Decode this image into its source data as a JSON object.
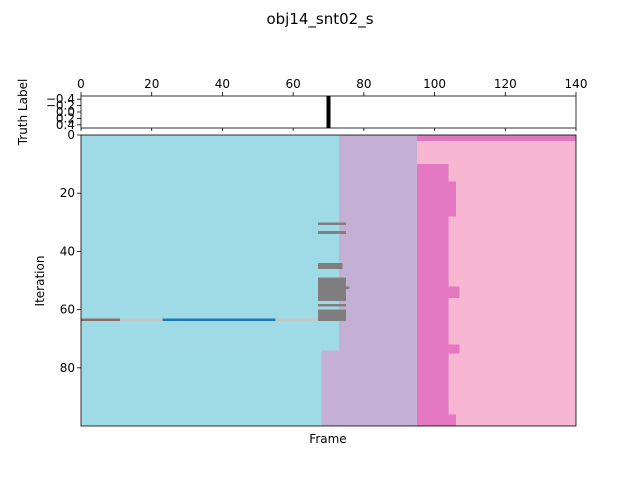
{
  "chart_data": [
    {
      "type": "heatmap",
      "title": "obj14_snt02_s",
      "xaxis_position": "top",
      "xlim": [
        0,
        140
      ],
      "xticks": [
        0,
        20,
        40,
        60,
        80,
        100,
        120,
        140
      ],
      "ylabel": "Truth Label",
      "ylim": [
        0.5,
        -0.5
      ],
      "yticks": [
        -0.4,
        -0.2,
        0.0,
        0.2,
        0.4
      ],
      "ytick_labels": [
        "−0.4",
        "−0.2",
        "0.0",
        "0.2",
        "0.4"
      ],
      "markers": [
        {
          "x": 70,
          "color": "#000000"
        }
      ]
    },
    {
      "type": "heatmap",
      "xlabel": "Frame",
      "ylabel": "Iteration",
      "xlim": [
        0,
        140
      ],
      "ylim": [
        100,
        0
      ],
      "yticks": [
        0,
        20,
        40,
        60,
        80
      ],
      "x_ticks_visible": false,
      "grid": false,
      "colors": {
        "cyan": "#9fdbe6",
        "lavender": "#c5b0d5",
        "pink": "#f7b6d2",
        "magenta": "#e377c2",
        "gray": "#7f7f7f",
        "brown": "#8c6d62",
        "light_gray": "#c7c7c7",
        "blue": "#1f77b4"
      },
      "regions": [
        {
          "color": "cyan",
          "x0": 0,
          "x1": 73,
          "y0": 0,
          "y1": 100
        },
        {
          "color": "lavender",
          "x0": 73,
          "x1": 95,
          "y0": 0,
          "y1": 100
        },
        {
          "color": "pink",
          "x0": 95,
          "x1": 140,
          "y0": 0,
          "y1": 100
        },
        {
          "color": "lavender",
          "x0": 68,
          "x1": 73,
          "y0": 74,
          "y1": 100
        },
        {
          "color": "magenta",
          "x0": 95,
          "x1": 140,
          "y0": 0,
          "y1": 2
        },
        {
          "color": "magenta",
          "x0": 95,
          "x1": 104,
          "y0": 10,
          "y1": 100
        },
        {
          "color": "magenta",
          "x0": 104,
          "x1": 106,
          "y0": 16,
          "y1": 28
        },
        {
          "color": "magenta",
          "x0": 104,
          "x1": 107,
          "y0": 52,
          "y1": 56
        },
        {
          "color": "magenta",
          "x0": 104,
          "x1": 107,
          "y0": 72,
          "y1": 75
        },
        {
          "color": "magenta",
          "x0": 104,
          "x1": 106,
          "y0": 96,
          "y1": 100
        },
        {
          "color": "gray",
          "x0": 67,
          "x1": 75,
          "y0": 30,
          "y1": 31
        },
        {
          "color": "gray",
          "x0": 67,
          "x1": 75,
          "y0": 33,
          "y1": 34
        },
        {
          "color": "gray",
          "x0": 67,
          "x1": 74,
          "y0": 44,
          "y1": 46
        },
        {
          "color": "gray",
          "x0": 67,
          "x1": 75,
          "y0": 49,
          "y1": 57
        },
        {
          "color": "gray",
          "x0": 75,
          "x1": 76,
          "y0": 52,
          "y1": 53
        },
        {
          "color": "gray",
          "x0": 67,
          "x1": 75,
          "y0": 58,
          "y1": 59
        },
        {
          "color": "gray",
          "x0": 67,
          "x1": 75,
          "y0": 60,
          "y1": 63
        },
        {
          "color": "brown",
          "x0": 0,
          "x1": 11,
          "y0": 63,
          "y1": 64
        },
        {
          "color": "light_gray",
          "x0": 11,
          "x1": 23,
          "y0": 63,
          "y1": 64
        },
        {
          "color": "blue",
          "x0": 23,
          "x1": 55,
          "y0": 63,
          "y1": 64
        },
        {
          "color": "light_gray",
          "x0": 55,
          "x1": 67,
          "y0": 63,
          "y1": 64
        },
        {
          "color": "gray",
          "x0": 67,
          "x1": 75,
          "y0": 63,
          "y1": 64
        }
      ]
    }
  ]
}
